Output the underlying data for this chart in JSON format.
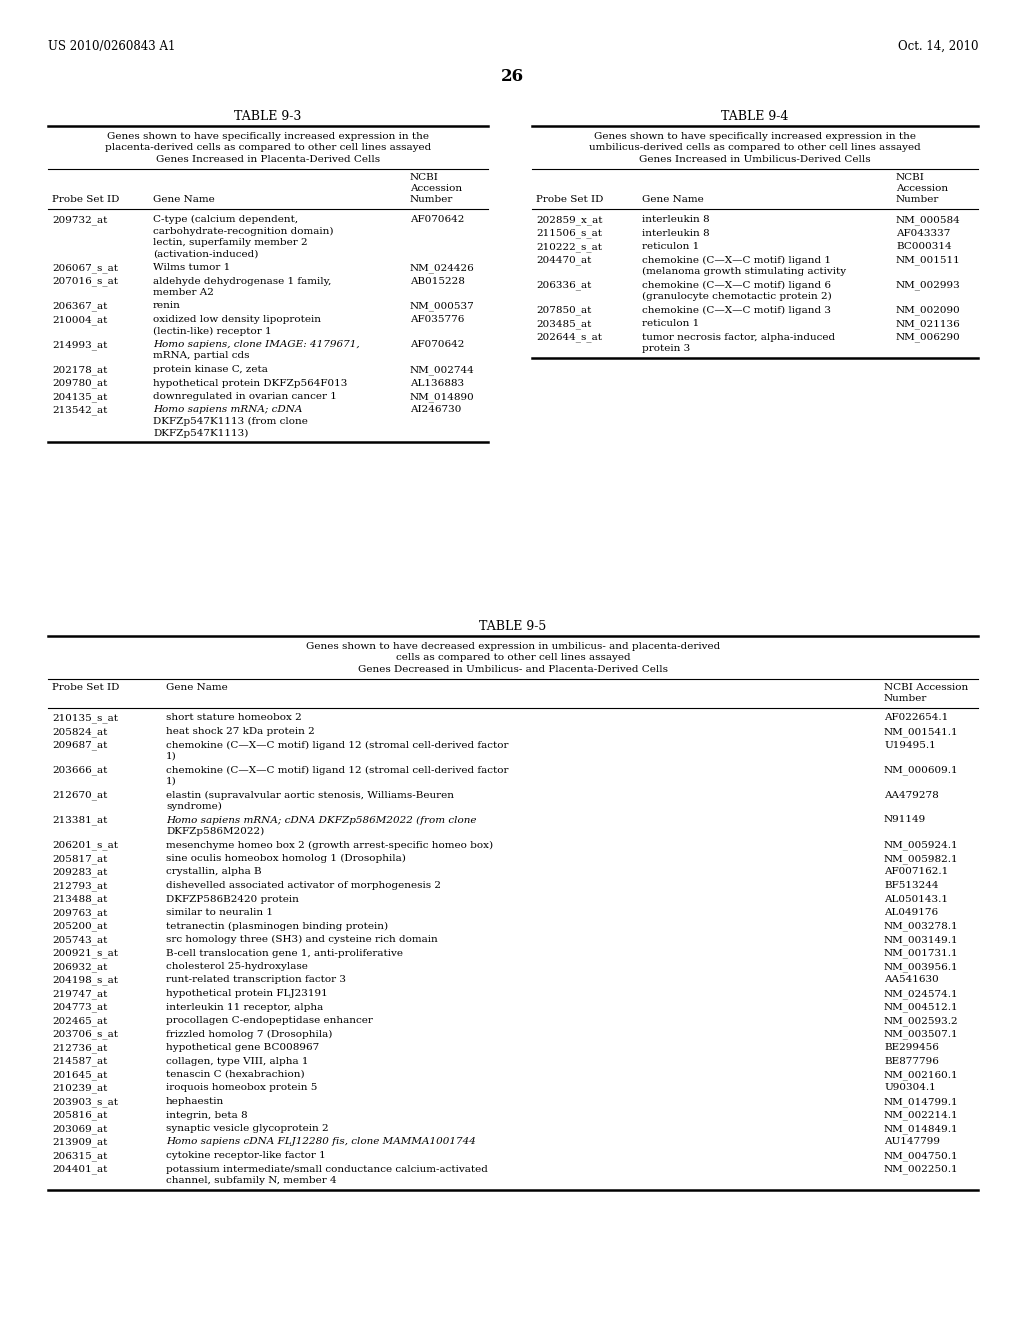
{
  "page_header_left": "US 2010/0260843 A1",
  "page_header_right": "Oct. 14, 2010",
  "page_number": "26",
  "background_color": "#ffffff",
  "text_color": "#000000",
  "table93": {
    "title": "TABLE 9-3",
    "subtitle_lines": [
      "Genes shown to have specifically increased expression in the",
      "placenta-derived cells as compared to other cell lines assayed",
      "Genes Increased in Placenta-Derived Cells"
    ],
    "rows": [
      [
        "209732_at",
        "C-type (calcium dependent,\ncarbohydrate-recognition domain)\nlectin, superfamily member 2\n(activation-induced)",
        "AF070642"
      ],
      [
        "206067_s_at",
        "Wilms tumor 1",
        "NM_024426"
      ],
      [
        "207016_s_at",
        "aldehyde dehydrogenase 1 family,\nmember A2",
        "AB015228"
      ],
      [
        "206367_at",
        "renin",
        "NM_000537"
      ],
      [
        "210004_at",
        "oxidized low density lipoprotein\n(lectin-like) receptor 1",
        "AF035776"
      ],
      [
        "214993_at",
        "Homo sapiens, clone IMAGE: 4179671,\nmRNA, partial cds",
        "AF070642"
      ],
      [
        "202178_at",
        "protein kinase C, zeta",
        "NM_002744"
      ],
      [
        "209780_at",
        "hypothetical protein DKFZp564F013",
        "AL136883"
      ],
      [
        "204135_at",
        "downregulated in ovarian cancer 1",
        "NM_014890"
      ],
      [
        "213542_at",
        "Homo sapiens mRNA; cDNA\nDKFZp547K1113 (from clone\nDKFZp547K1113)",
        "AI246730"
      ]
    ]
  },
  "table94": {
    "title": "TABLE 9-4",
    "subtitle_lines": [
      "Genes shown to have specifically increased expression in the",
      "umbilicus-derived cells as compared to other cell lines assayed",
      "Genes Increased in Umbilicus-Derived Cells"
    ],
    "rows": [
      [
        "202859_x_at",
        "interleukin 8",
        "NM_000584"
      ],
      [
        "211506_s_at",
        "interleukin 8",
        "AF043337"
      ],
      [
        "210222_s_at",
        "reticulon 1",
        "BC000314"
      ],
      [
        "204470_at",
        "chemokine (C—X—C motif) ligand 1\n(melanoma growth stimulating activity",
        "NM_001511"
      ],
      [
        "206336_at",
        "chemokine (C—X—C motif) ligand 6\n(granulocyte chemotactic protein 2)",
        "NM_002993"
      ],
      [
        "207850_at",
        "chemokine (C—X—C motif) ligand 3",
        "NM_002090"
      ],
      [
        "203485_at",
        "reticulon 1",
        "NM_021136"
      ],
      [
        "202644_s_at",
        "tumor necrosis factor, alpha-induced\nprotein 3",
        "NM_006290"
      ]
    ]
  },
  "table95": {
    "title": "TABLE 9-5",
    "subtitle_lines": [
      "Genes shown to have decreased expression in umbilicus- and placenta-derived",
      "cells as compared to other cell lines assayed",
      "Genes Decreased in Umbilicus- and Placenta-Derived Cells"
    ],
    "rows": [
      [
        "210135_s_at",
        "short stature homeobox 2",
        "AF022654.1"
      ],
      [
        "205824_at",
        "heat shock 27 kDa protein 2",
        "NM_001541.1"
      ],
      [
        "209687_at",
        "chemokine (C—X—C motif) ligand 12 (stromal cell-derived factor\n1)",
        "U19495.1"
      ],
      [
        "203666_at",
        "chemokine (C—X—C motif) ligand 12 (stromal cell-derived factor\n1)",
        "NM_000609.1"
      ],
      [
        "212670_at",
        "elastin (supravalvular aortic stenosis, Williams-Beuren\nsyndrome)",
        "AA479278"
      ],
      [
        "213381_at",
        "Homo sapiens mRNA; cDNA DKFZp586M2022 (from clone\nDKFZp586M2022)",
        "N91149"
      ],
      [
        "206201_s_at",
        "mesenchyme homeo box 2 (growth arrest-specific homeo box)",
        "NM_005924.1"
      ],
      [
        "205817_at",
        "sine oculis homeobox homolog 1 (Drosophila)",
        "NM_005982.1"
      ],
      [
        "209283_at",
        "crystallin, alpha B",
        "AF007162.1"
      ],
      [
        "212793_at",
        "dishevelled associated activator of morphogenesis 2",
        "BF513244"
      ],
      [
        "213488_at",
        "DKFZP586B2420 protein",
        "AL050143.1"
      ],
      [
        "209763_at",
        "similar to neuralin 1",
        "AL049176"
      ],
      [
        "205200_at",
        "tetranectin (plasminogen binding protein)",
        "NM_003278.1"
      ],
      [
        "205743_at",
        "src homology three (SH3) and cysteine rich domain",
        "NM_003149.1"
      ],
      [
        "200921_s_at",
        "B-cell translocation gene 1, anti-proliferative",
        "NM_001731.1"
      ],
      [
        "206932_at",
        "cholesterol 25-hydroxylase",
        "NM_003956.1"
      ],
      [
        "204198_s_at",
        "runt-related transcription factor 3",
        "AA541630"
      ],
      [
        "219747_at",
        "hypothetical protein FLJ23191",
        "NM_024574.1"
      ],
      [
        "204773_at",
        "interleukin 11 receptor, alpha",
        "NM_004512.1"
      ],
      [
        "202465_at",
        "procollagen C-endopeptidase enhancer",
        "NM_002593.2"
      ],
      [
        "203706_s_at",
        "frizzled homolog 7 (Drosophila)",
        "NM_003507.1"
      ],
      [
        "212736_at",
        "hypothetical gene BC008967",
        "BE299456"
      ],
      [
        "214587_at",
        "collagen, type VIII, alpha 1",
        "BE877796"
      ],
      [
        "201645_at",
        "tenascin C (hexabrachion)",
        "NM_002160.1"
      ],
      [
        "210239_at",
        "iroquois homeobox protein 5",
        "U90304.1"
      ],
      [
        "203903_s_at",
        "hephaestin",
        "NM_014799.1"
      ],
      [
        "205816_at",
        "integrin, beta 8",
        "NM_002214.1"
      ],
      [
        "203069_at",
        "synaptic vesicle glycoprotein 2",
        "NM_014849.1"
      ],
      [
        "213909_at",
        "Homo sapiens cDNA FLJ12280 fis, clone MAMMA1001744",
        "AU147799"
      ],
      [
        "206315_at",
        "cytokine receptor-like factor 1",
        "NM_004750.1"
      ],
      [
        "204401_at",
        "potassium intermediate/small conductance calcium-activated\nchannel, subfamily N, member 4",
        "NM_002250.1"
      ]
    ]
  }
}
